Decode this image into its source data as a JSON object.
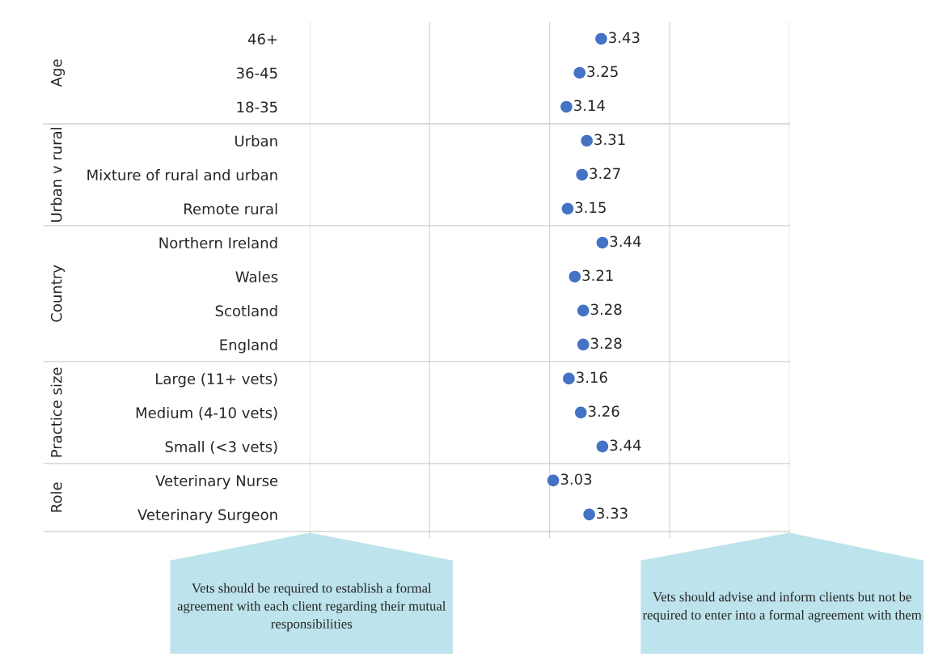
{
  "chart_data": {
    "type": "scatter",
    "orientation": "horizontal",
    "categories": [
      "46+",
      "36-45",
      "18-35",
      "Urban",
      "Mixture of rural and urban",
      "Remote rural",
      "Northern Ireland",
      "Wales",
      "Scotland",
      "England",
      "Large (11+ vets)",
      "Medium (4-10 vets)",
      "Small (<3 vets)",
      "Veterinary Nurse",
      "Veterinary Surgeon"
    ],
    "values": [
      3.43,
      3.25,
      3.14,
      3.31,
      3.27,
      3.15,
      3.44,
      3.21,
      3.28,
      3.28,
      3.16,
      3.26,
      3.44,
      3.03,
      3.33
    ],
    "color": "#4472c4",
    "marker": "circle",
    "data_labels": true,
    "xlim": [
      1,
      5
    ],
    "xticks": [
      {
        "value": 1,
        "label": null
      },
      {
        "value": 2,
        "label": null
      },
      {
        "value": 3,
        "label": null
      },
      {
        "value": 4,
        "label": null
      },
      {
        "value": 5,
        "label": null
      }
    ],
    "grid": "x",
    "tick_labels": "y",
    "annotations": [
      "Age",
      "Urban v rural",
      "Country",
      "Practice size",
      "Role",
      "Vets should be required to establish a formal agreement with each client regarding their mutual responsibilities",
      "Vets should advise and inform clients but not be required to enter into a formal agreement with them"
    ]
  }
}
